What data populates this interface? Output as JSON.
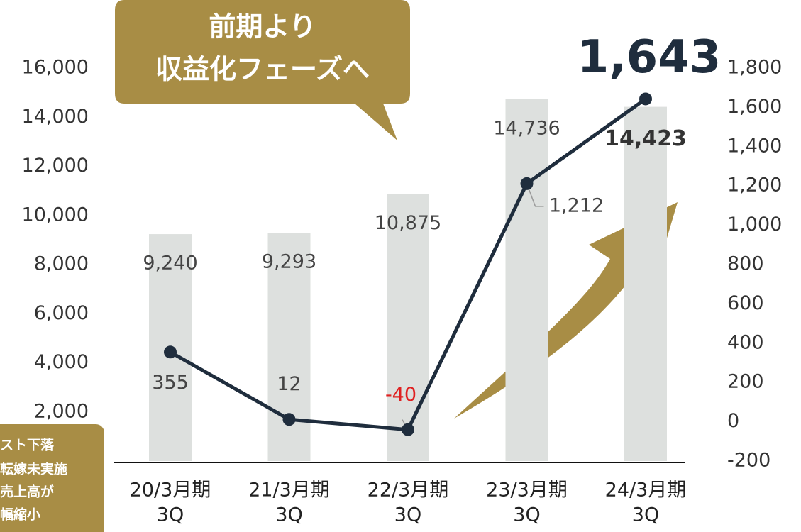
{
  "chart_data": {
    "type": "bar_line",
    "categories": [
      [
        "20/3月期",
        "3Q"
      ],
      [
        "21/3月期",
        "3Q"
      ],
      [
        "22/3月期",
        "3Q"
      ],
      [
        "23/3月期",
        "3Q"
      ],
      [
        "24/3月期",
        "3Q"
      ]
    ],
    "series": [
      {
        "type": "bar",
        "color": "#dde0de",
        "values": [
          9240,
          9293,
          10875,
          14736,
          14423
        ],
        "value_labels": [
          "9,240",
          "9,293",
          "10,875",
          "14,736",
          "14,423"
        ]
      },
      {
        "type": "line",
        "axis": "y2",
        "color": "#1f2d3d",
        "values": [
          355,
          12,
          -40,
          1212,
          1643
        ],
        "value_labels": [
          "355",
          "12",
          "-40",
          "1,212",
          "1,643"
        ]
      }
    ],
    "ylim": [
      0,
      16000
    ],
    "yticks": [
      {
        "value": 2000,
        "label": "2,000"
      },
      {
        "value": 4000,
        "label": "4,000"
      },
      {
        "value": 6000,
        "label": "6,000"
      },
      {
        "value": 8000,
        "label": "8,000"
      },
      {
        "value": 10000,
        "label": "10,000"
      },
      {
        "value": 12000,
        "label": "12,000"
      },
      {
        "value": 14000,
        "label": "14,000"
      },
      {
        "value": 16000,
        "label": "16,000"
      }
    ],
    "y2lim": [
      -200,
      1800
    ],
    "y2ticks": [
      -200,
      0,
      200,
      400,
      600,
      800,
      {
        "value": 1000,
        "label": "1,000"
      },
      {
        "value": 1200,
        "label": "1,200"
      },
      {
        "value": 1400,
        "label": "1,400"
      },
      {
        "value": 1600,
        "label": "1,600"
      },
      {
        "value": 1800,
        "label": "1,800"
      }
    ],
    "annotations": [
      [
        "前期より",
        "収益化フェーズへ"
      ],
      [
        "スト下落",
        "転嫁未実施",
        "売上高が",
        "幅縮小"
      ]
    ]
  }
}
